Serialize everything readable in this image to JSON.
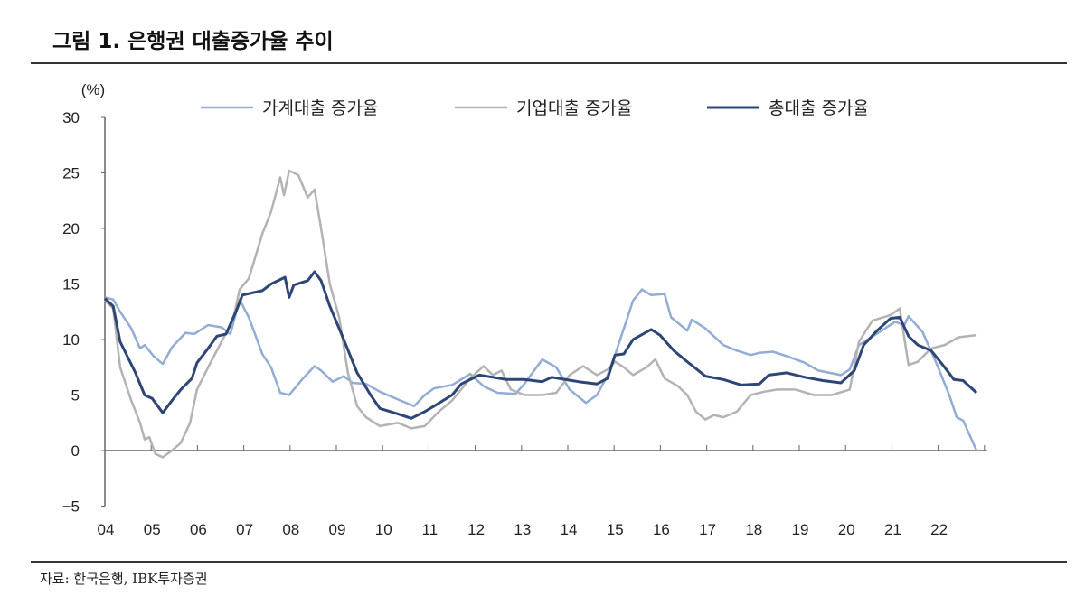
{
  "title": "그림 1. 은행권 대출증가율 추이",
  "source": "자료: 한국은행, IBK투자증권",
  "chart_data": {
    "type": "line",
    "title": "그림 1. 은행권 대출증가율 추이",
    "ylabel": "(%)",
    "xlabel": "",
    "ylim": [
      -5,
      30
    ],
    "yticks": [
      -5,
      0,
      5,
      10,
      15,
      20,
      25,
      30
    ],
    "xlim": [
      2004,
      2023
    ],
    "xtick_labels": [
      "04",
      "05",
      "06",
      "07",
      "08",
      "09",
      "10",
      "11",
      "12",
      "13",
      "14",
      "15",
      "16",
      "17",
      "18",
      "19",
      "20",
      "21",
      "22"
    ],
    "grid": false,
    "legend_position": "top",
    "series": [
      {
        "name": "가계대출 증가율",
        "color": "#93acd6",
        "points": [
          [
            2004,
            13.8
          ],
          [
            2004.18,
            13.6
          ],
          [
            2004.33,
            12.5
          ],
          [
            2004.57,
            11.0
          ],
          [
            2004.76,
            9.2
          ],
          [
            2004.86,
            9.5
          ],
          [
            2005.05,
            8.5
          ],
          [
            2005.25,
            7.8
          ],
          [
            2005.45,
            9.3
          ],
          [
            2005.74,
            10.6
          ],
          [
            2005.93,
            10.5
          ],
          [
            2006.23,
            11.3
          ],
          [
            2006.52,
            11.1
          ],
          [
            2006.71,
            10.5
          ],
          [
            2006.91,
            13.6
          ],
          [
            2007.11,
            12.0
          ],
          [
            2007.4,
            8.7
          ],
          [
            2007.59,
            7.5
          ],
          [
            2007.79,
            5.2
          ],
          [
            2007.98,
            5.0
          ],
          [
            2008.28,
            6.5
          ],
          [
            2008.53,
            7.6
          ],
          [
            2008.67,
            7.2
          ],
          [
            2008.92,
            6.2
          ],
          [
            2009.16,
            6.7
          ],
          [
            2009.35,
            6.1
          ],
          [
            2009.64,
            6.0
          ],
          [
            2009.94,
            5.3
          ],
          [
            2010.33,
            4.6
          ],
          [
            2010.68,
            4.0
          ],
          [
            2010.91,
            5.0
          ],
          [
            2011.11,
            5.6
          ],
          [
            2011.5,
            5.9
          ],
          [
            2011.89,
            6.9
          ],
          [
            2012.18,
            5.8
          ],
          [
            2012.48,
            5.2
          ],
          [
            2012.87,
            5.1
          ],
          [
            2013.06,
            6.0
          ],
          [
            2013.45,
            8.2
          ],
          [
            2013.75,
            7.5
          ],
          [
            2014.04,
            5.5
          ],
          [
            2014.39,
            4.3
          ],
          [
            2014.63,
            5.0
          ],
          [
            2014.86,
            6.8
          ],
          [
            2015.02,
            8.6
          ],
          [
            2015.21,
            11.0
          ],
          [
            2015.41,
            13.5
          ],
          [
            2015.6,
            14.5
          ],
          [
            2015.8,
            14.0
          ],
          [
            2016.09,
            14.1
          ],
          [
            2016.23,
            12.0
          ],
          [
            2016.58,
            10.8
          ],
          [
            2016.68,
            11.8
          ],
          [
            2016.97,
            11.0
          ],
          [
            2017.36,
            9.5
          ],
          [
            2017.65,
            9.0
          ],
          [
            2017.95,
            8.6
          ],
          [
            2018.14,
            8.8
          ],
          [
            2018.43,
            8.9
          ],
          [
            2018.73,
            8.5
          ],
          [
            2019.12,
            7.9
          ],
          [
            2019.41,
            7.2
          ],
          [
            2019.9,
            6.8
          ],
          [
            2020.09,
            7.3
          ],
          [
            2020.29,
            9.5
          ],
          [
            2020.48,
            10.0
          ],
          [
            2020.78,
            10.8
          ],
          [
            2021.07,
            11.6
          ],
          [
            2021.27,
            11.3
          ],
          [
            2021.36,
            12.1
          ],
          [
            2021.66,
            10.7
          ],
          [
            2021.95,
            8.0
          ],
          [
            2022.24,
            5.0
          ],
          [
            2022.4,
            3.0
          ],
          [
            2022.54,
            2.7
          ],
          [
            2022.83,
            0.0
          ]
        ]
      },
      {
        "name": "기업대출 증가율",
        "color": "#b3b3b3",
        "points": [
          [
            2004,
            13.5
          ],
          [
            2004.18,
            12.8
          ],
          [
            2004.33,
            7.5
          ],
          [
            2004.57,
            4.5
          ],
          [
            2004.76,
            2.5
          ],
          [
            2004.86,
            1.0
          ],
          [
            2004.96,
            1.2
          ],
          [
            2005.09,
            -0.3
          ],
          [
            2005.25,
            -0.6
          ],
          [
            2005.45,
            0.0
          ],
          [
            2005.64,
            0.7
          ],
          [
            2005.84,
            2.5
          ],
          [
            2005.99,
            5.5
          ],
          [
            2006.23,
            7.5
          ],
          [
            2006.52,
            9.8
          ],
          [
            2006.77,
            11.8
          ],
          [
            2006.91,
            14.5
          ],
          [
            2007.11,
            15.5
          ],
          [
            2007.4,
            19.5
          ],
          [
            2007.59,
            21.5
          ],
          [
            2007.79,
            24.6
          ],
          [
            2007.87,
            23.0
          ],
          [
            2007.98,
            25.2
          ],
          [
            2008.18,
            24.8
          ],
          [
            2008.38,
            22.8
          ],
          [
            2008.53,
            23.5
          ],
          [
            2008.67,
            20.0
          ],
          [
            2008.86,
            15.0
          ],
          [
            2009.06,
            12.0
          ],
          [
            2009.25,
            7.0
          ],
          [
            2009.45,
            4.0
          ],
          [
            2009.64,
            3.0
          ],
          [
            2009.94,
            2.2
          ],
          [
            2010.33,
            2.5
          ],
          [
            2010.62,
            2.0
          ],
          [
            2010.91,
            2.2
          ],
          [
            2011.21,
            3.5
          ],
          [
            2011.5,
            4.5
          ],
          [
            2011.89,
            6.5
          ],
          [
            2012.18,
            7.6
          ],
          [
            2012.38,
            6.8
          ],
          [
            2012.57,
            7.2
          ],
          [
            2012.77,
            5.5
          ],
          [
            2013.06,
            5.0
          ],
          [
            2013.45,
            5.0
          ],
          [
            2013.75,
            5.2
          ],
          [
            2014.04,
            6.8
          ],
          [
            2014.33,
            7.6
          ],
          [
            2014.63,
            6.8
          ],
          [
            2014.86,
            7.3
          ],
          [
            2015.02,
            8.0
          ],
          [
            2015.21,
            7.5
          ],
          [
            2015.41,
            6.8
          ],
          [
            2015.7,
            7.5
          ],
          [
            2015.89,
            8.2
          ],
          [
            2016.09,
            6.5
          ],
          [
            2016.38,
            5.8
          ],
          [
            2016.58,
            5.0
          ],
          [
            2016.77,
            3.5
          ],
          [
            2016.97,
            2.8
          ],
          [
            2017.16,
            3.2
          ],
          [
            2017.36,
            3.0
          ],
          [
            2017.65,
            3.5
          ],
          [
            2017.95,
            5.0
          ],
          [
            2018.24,
            5.3
          ],
          [
            2018.53,
            5.5
          ],
          [
            2018.92,
            5.5
          ],
          [
            2019.31,
            5.0
          ],
          [
            2019.7,
            5.0
          ],
          [
            2020.09,
            5.5
          ],
          [
            2020.29,
            9.8
          ],
          [
            2020.58,
            11.7
          ],
          [
            2020.97,
            12.2
          ],
          [
            2021.17,
            12.8
          ],
          [
            2021.36,
            7.7
          ],
          [
            2021.56,
            8.0
          ],
          [
            2021.85,
            9.2
          ],
          [
            2022.14,
            9.5
          ],
          [
            2022.44,
            10.2
          ],
          [
            2022.83,
            10.4
          ]
        ]
      },
      {
        "name": "총대출 증가율",
        "color": "#2e4676",
        "points": [
          [
            2004,
            13.7
          ],
          [
            2004.18,
            13.0
          ],
          [
            2004.33,
            9.8
          ],
          [
            2004.66,
            7.0
          ],
          [
            2004.86,
            5.0
          ],
          [
            2005.02,
            4.7
          ],
          [
            2005.25,
            3.4
          ],
          [
            2005.45,
            4.5
          ],
          [
            2005.64,
            5.5
          ],
          [
            2005.88,
            6.5
          ],
          [
            2005.99,
            7.9
          ],
          [
            2006.23,
            9.2
          ],
          [
            2006.42,
            10.3
          ],
          [
            2006.62,
            10.5
          ],
          [
            2006.85,
            12.7
          ],
          [
            2006.97,
            14.0
          ],
          [
            2007.4,
            14.4
          ],
          [
            2007.59,
            15.0
          ],
          [
            2007.89,
            15.6
          ],
          [
            2007.98,
            13.8
          ],
          [
            2008.08,
            14.9
          ],
          [
            2008.38,
            15.3
          ],
          [
            2008.53,
            16.1
          ],
          [
            2008.67,
            15.3
          ],
          [
            2008.86,
            13.0
          ],
          [
            2009.16,
            10.0
          ],
          [
            2009.45,
            7.0
          ],
          [
            2009.74,
            5.0
          ],
          [
            2009.94,
            3.8
          ],
          [
            2010.33,
            3.3
          ],
          [
            2010.62,
            2.9
          ],
          [
            2010.91,
            3.5
          ],
          [
            2011.11,
            4.0
          ],
          [
            2011.5,
            5.0
          ],
          [
            2011.7,
            6.0
          ],
          [
            2012.09,
            6.8
          ],
          [
            2012.38,
            6.6
          ],
          [
            2012.67,
            6.4
          ],
          [
            2013.06,
            6.4
          ],
          [
            2013.45,
            6.2
          ],
          [
            2013.65,
            6.6
          ],
          [
            2014.23,
            6.2
          ],
          [
            2014.63,
            6.0
          ],
          [
            2014.86,
            6.5
          ],
          [
            2015.02,
            8.6
          ],
          [
            2015.21,
            8.7
          ],
          [
            2015.41,
            10.0
          ],
          [
            2015.8,
            10.9
          ],
          [
            2015.99,
            10.4
          ],
          [
            2016.29,
            9.0
          ],
          [
            2016.58,
            8.0
          ],
          [
            2016.97,
            6.7
          ],
          [
            2017.36,
            6.4
          ],
          [
            2017.75,
            5.9
          ],
          [
            2018.14,
            6.0
          ],
          [
            2018.34,
            6.8
          ],
          [
            2018.73,
            7.0
          ],
          [
            2019.12,
            6.6
          ],
          [
            2019.51,
            6.3
          ],
          [
            2019.9,
            6.1
          ],
          [
            2020.19,
            7.2
          ],
          [
            2020.39,
            9.5
          ],
          [
            2020.68,
            10.8
          ],
          [
            2020.97,
            11.9
          ],
          [
            2021.17,
            12.0
          ],
          [
            2021.36,
            10.3
          ],
          [
            2021.56,
            9.5
          ],
          [
            2021.85,
            9.0
          ],
          [
            2022.14,
            7.5
          ],
          [
            2022.34,
            6.4
          ],
          [
            2022.54,
            6.3
          ],
          [
            2022.83,
            5.2
          ]
        ]
      }
    ]
  }
}
